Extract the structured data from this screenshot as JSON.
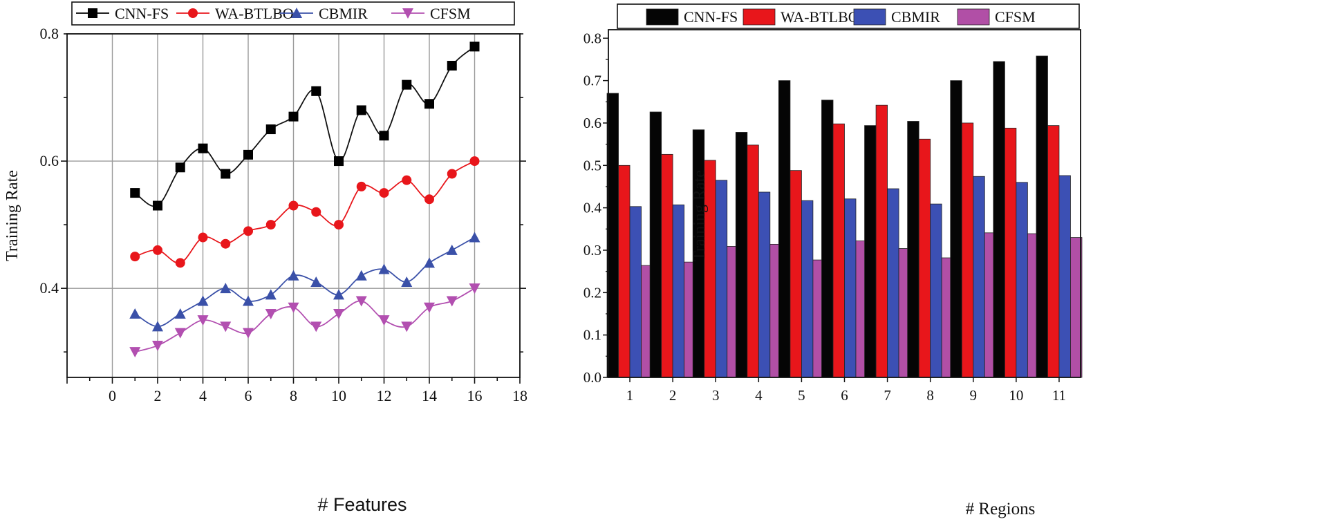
{
  "chart_data": [
    {
      "type": "line",
      "title": "",
      "xlabel": "# Features",
      "ylabel": "Training Rate",
      "xlim": [
        -2,
        18
      ],
      "ylim": [
        0.26,
        0.8
      ],
      "xticks": [
        "0",
        "2",
        "4",
        "6",
        "8",
        "10",
        "12",
        "14",
        "16",
        "18"
      ],
      "yticks": [
        "0.4",
        "0.6",
        "0.8"
      ],
      "grid": true,
      "legend_position": "top",
      "x": [
        1,
        2,
        3,
        4,
        5,
        6,
        7,
        8,
        9,
        10,
        11,
        12,
        13,
        14,
        15,
        16
      ],
      "series": [
        {
          "name": "CNN-FS",
          "color": "#000000",
          "marker": "square",
          "values": [
            0.55,
            0.53,
            0.59,
            0.62,
            0.58,
            0.61,
            0.65,
            0.67,
            0.71,
            0.6,
            0.68,
            0.64,
            0.72,
            0.69,
            0.75,
            0.78
          ]
        },
        {
          "name": "WA-BTLBO",
          "color": "#e8161b",
          "marker": "circle",
          "values": [
            0.45,
            0.46,
            0.44,
            0.48,
            0.47,
            0.49,
            0.5,
            0.53,
            0.52,
            0.5,
            0.56,
            0.55,
            0.57,
            0.54,
            0.58,
            0.6
          ]
        },
        {
          "name": "CBMIR",
          "color": "#3a50a8",
          "marker": "triangle-up",
          "values": [
            0.36,
            0.34,
            0.36,
            0.38,
            0.4,
            0.38,
            0.39,
            0.42,
            0.41,
            0.39,
            0.42,
            0.43,
            0.41,
            0.44,
            0.46,
            0.48
          ]
        },
        {
          "name": "CFSM",
          "color": "#b24fb0",
          "marker": "triangle-down",
          "values": [
            0.3,
            0.31,
            0.33,
            0.35,
            0.34,
            0.33,
            0.36,
            0.37,
            0.34,
            0.36,
            0.38,
            0.35,
            0.34,
            0.37,
            0.38,
            0.4
          ]
        }
      ]
    },
    {
      "type": "bar",
      "title": "",
      "xlabel": "# Regions",
      "ylabel": "Training Rate",
      "ylim": [
        0,
        0.82
      ],
      "yticks": [
        "0.0",
        "0.1",
        "0.2",
        "0.3",
        "0.4",
        "0.5",
        "0.6",
        "0.7",
        "0.8"
      ],
      "grid": false,
      "legend_position": "top",
      "categories": [
        "1",
        "2",
        "3",
        "4",
        "5",
        "6",
        "7",
        "8",
        "9",
        "10",
        "11"
      ],
      "series": [
        {
          "name": "CNN-FS",
          "color": "#050505",
          "values": [
            0.67,
            0.626,
            0.584,
            0.578,
            0.7,
            0.654,
            0.594,
            0.604,
            0.7,
            0.745,
            0.758
          ]
        },
        {
          "name": "WA-BTLBO",
          "color": "#e8161b",
          "values": [
            0.5,
            0.526,
            0.512,
            0.548,
            0.488,
            0.598,
            0.642,
            0.562,
            0.6,
            0.588,
            0.594
          ]
        },
        {
          "name": "CBMIR",
          "color": "#3c50b4",
          "values": [
            0.403,
            0.407,
            0.465,
            0.437,
            0.417,
            0.421,
            0.445,
            0.409,
            0.474,
            0.46,
            0.476
          ]
        },
        {
          "name": "CFSM",
          "color": "#b14fa6",
          "values": [
            0.264,
            0.272,
            0.309,
            0.314,
            0.277,
            0.322,
            0.304,
            0.282,
            0.341,
            0.339,
            0.33
          ]
        }
      ]
    }
  ]
}
